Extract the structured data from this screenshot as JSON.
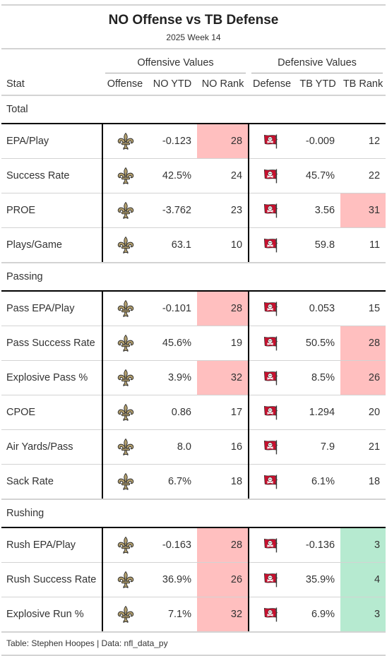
{
  "header": {
    "title": "NO Offense vs TB Defense",
    "subtitle": "2025 Week 14"
  },
  "spanners": {
    "offense": "Offensive Values",
    "defense": "Defensive Values"
  },
  "columns": {
    "stat": "Stat",
    "offense": "Offense",
    "off_ytd": "NO YTD",
    "off_rank": "NO Rank",
    "defense": "Defense",
    "def_ytd": "TB YTD",
    "def_rank": "TB Rank"
  },
  "logos": {
    "offense_icon": "saints-fleur-de-lis-icon",
    "defense_icon": "buccaneers-flag-icon",
    "offense_color": "#B5A16F",
    "defense_color": "#C8102E"
  },
  "rank_colors": {
    "bad": "#ffbfbf",
    "good": "#b6ead0"
  },
  "groups": [
    {
      "label": "Total",
      "rows": [
        {
          "stat": "EPA/Play",
          "off_ytd": "-0.123",
          "off_rank": "28",
          "off_hl": "bad",
          "def_ytd": "-0.009",
          "def_rank": "12",
          "def_hl": ""
        },
        {
          "stat": "Success Rate",
          "off_ytd": "42.5%",
          "off_rank": "24",
          "off_hl": "",
          "def_ytd": "45.7%",
          "def_rank": "22",
          "def_hl": ""
        },
        {
          "stat": "PROE",
          "off_ytd": "-3.762",
          "off_rank": "23",
          "off_hl": "",
          "def_ytd": "3.56",
          "def_rank": "31",
          "def_hl": "bad"
        },
        {
          "stat": "Plays/Game",
          "off_ytd": "63.1",
          "off_rank": "10",
          "off_hl": "",
          "def_ytd": "59.8",
          "def_rank": "11",
          "def_hl": ""
        }
      ]
    },
    {
      "label": "Passing",
      "rows": [
        {
          "stat": "Pass EPA/Play",
          "off_ytd": "-0.101",
          "off_rank": "28",
          "off_hl": "bad",
          "def_ytd": "0.053",
          "def_rank": "15",
          "def_hl": ""
        },
        {
          "stat": "Pass Success Rate",
          "off_ytd": "45.6%",
          "off_rank": "19",
          "off_hl": "",
          "def_ytd": "50.5%",
          "def_rank": "28",
          "def_hl": "bad"
        },
        {
          "stat": "Explosive Pass %",
          "off_ytd": "3.9%",
          "off_rank": "32",
          "off_hl": "bad",
          "def_ytd": "8.5%",
          "def_rank": "26",
          "def_hl": "bad"
        },
        {
          "stat": "CPOE",
          "off_ytd": "0.86",
          "off_rank": "17",
          "off_hl": "",
          "def_ytd": "1.294",
          "def_rank": "20",
          "def_hl": ""
        },
        {
          "stat": "Air Yards/Pass",
          "off_ytd": "8.0",
          "off_rank": "16",
          "off_hl": "",
          "def_ytd": "7.9",
          "def_rank": "21",
          "def_hl": ""
        },
        {
          "stat": "Sack Rate",
          "off_ytd": "6.7%",
          "off_rank": "18",
          "off_hl": "",
          "def_ytd": "6.1%",
          "def_rank": "18",
          "def_hl": ""
        }
      ]
    },
    {
      "label": "Rushing",
      "rows": [
        {
          "stat": "Rush EPA/Play",
          "off_ytd": "-0.163",
          "off_rank": "28",
          "off_hl": "bad",
          "def_ytd": "-0.136",
          "def_rank": "3",
          "def_hl": "good"
        },
        {
          "stat": "Rush Success Rate",
          "off_ytd": "36.9%",
          "off_rank": "26",
          "off_hl": "bad",
          "def_ytd": "35.9%",
          "def_rank": "4",
          "def_hl": "good"
        },
        {
          "stat": "Explosive Run %",
          "off_ytd": "7.1%",
          "off_rank": "32",
          "off_hl": "bad",
          "def_ytd": "6.9%",
          "def_rank": "3",
          "def_hl": "good"
        }
      ]
    }
  ],
  "footer": "Table: Stephen Hoopes | Data: nfl_data_py"
}
